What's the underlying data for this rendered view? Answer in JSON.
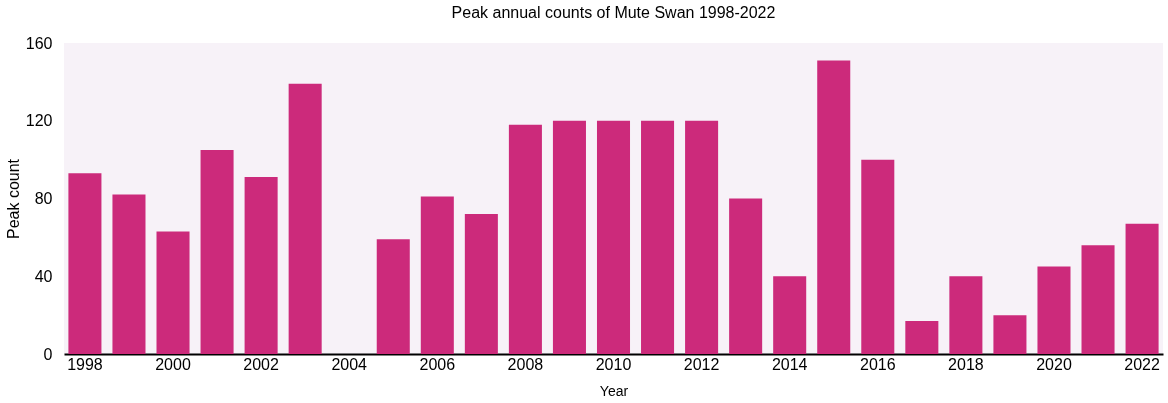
{
  "chart_data": {
    "type": "bar",
    "title": "Peak annual counts of Mute Swan 1998-2022",
    "xlabel": "Year",
    "ylabel": "Peak count",
    "categories": [
      "1998",
      null,
      "2000",
      null,
      "2002",
      null,
      "2004",
      null,
      "2006",
      null,
      "2008",
      null,
      "2010",
      null,
      "2012",
      null,
      "2014",
      null,
      "2016",
      null,
      "2018",
      null,
      "2020",
      null,
      "2022"
    ],
    "values": [
      93,
      82,
      63,
      105,
      91,
      139,
      null,
      59,
      81,
      72,
      118,
      120,
      120,
      120,
      120,
      80,
      40,
      151,
      100,
      17,
      40,
      20,
      45,
      56,
      67
    ],
    "color": "#cc2a7b",
    "ylim": [
      0,
      160
    ],
    "yticks": [
      0,
      40,
      80,
      120,
      160
    ],
    "grid": false
  }
}
